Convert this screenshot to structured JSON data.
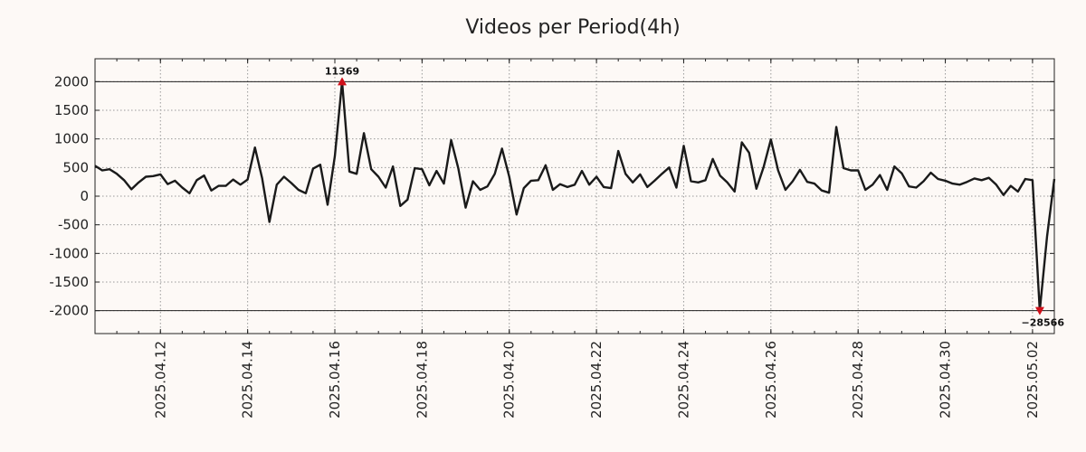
{
  "chart_data": {
    "type": "line",
    "title": "Videos per Period(4h)",
    "xlabel": "",
    "ylabel": "",
    "ylim": [
      -2400,
      2400
    ],
    "grid": true,
    "yticks": [
      2000,
      1500,
      1000,
      500,
      0,
      -500,
      -1000,
      -1500,
      -2000
    ],
    "ytick_labels": [
      "2000",
      "1500",
      "1000",
      "500",
      "0",
      "-500",
      "-1000",
      "-1500",
      "-2000"
    ],
    "xlim": [
      "2025-04-10 12:00",
      "2025-05-02 12:00"
    ],
    "xticks": [
      "2025-04-12",
      "2025-04-14",
      "2025-04-16",
      "2025-04-18",
      "2025-04-20",
      "2025-04-22",
      "2025-04-24",
      "2025-04-26",
      "2025-04-28",
      "2025-04-30",
      "2025-05-02"
    ],
    "xtick_labels": [
      "2025.04.12",
      "2025.04.14",
      "2025.04.16",
      "2025.04.18",
      "2025.04.20",
      "2025.04.22",
      "2025.04.24",
      "2025.04.26",
      "2025.04.28",
      "2025.04.30",
      "2025.05.02"
    ],
    "hlines": [
      2000,
      -2000
    ],
    "series_start": "2025-04-10 12:00",
    "series_step_hours": 4,
    "values": [
      530,
      450,
      470,
      390,
      280,
      120,
      240,
      340,
      350,
      380,
      210,
      270,
      150,
      50,
      280,
      360,
      100,
      180,
      180,
      290,
      200,
      290,
      850,
      310,
      -450,
      200,
      340,
      230,
      110,
      50,
      480,
      550,
      -150,
      700,
      2000,
      430,
      390,
      1100,
      470,
      340,
      150,
      520,
      -170,
      -60,
      490,
      470,
      190,
      440,
      220,
      980,
      480,
      -200,
      260,
      110,
      170,
      390,
      830,
      340,
      -320,
      140,
      270,
      280,
      540,
      110,
      210,
      160,
      200,
      440,
      200,
      340,
      160,
      140,
      790,
      390,
      240,
      380,
      160,
      270,
      390,
      500,
      150,
      880,
      260,
      240,
      280,
      650,
      360,
      240,
      80,
      940,
      760,
      130,
      510,
      990,
      450,
      110,
      260,
      460,
      250,
      220,
      100,
      60,
      1210,
      490,
      450,
      450,
      110,
      200,
      370,
      110,
      520,
      400,
      170,
      150,
      260,
      410,
      300,
      270,
      220,
      200,
      250,
      310,
      280,
      320,
      200,
      20,
      180,
      80,
      300,
      280,
      -2000,
      -700,
      300
    ],
    "annotations": [
      {
        "text": "11369",
        "x_index": 34,
        "y": 2000,
        "marker": "up-triangle",
        "color": "#d0101a"
      },
      {
        "text": "−28566",
        "x_index": 130,
        "y": -2000,
        "marker": "down-triangle",
        "color": "#d0101a"
      }
    ]
  }
}
